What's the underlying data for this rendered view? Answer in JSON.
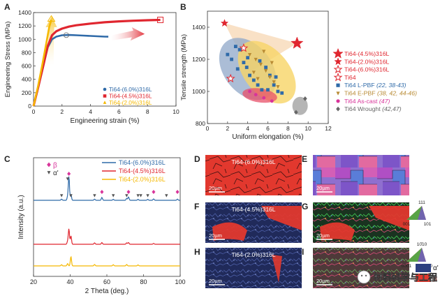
{
  "panels": {
    "A": {
      "letter": "A"
    },
    "B": {
      "letter": "B"
    },
    "C": {
      "letter": "C"
    },
    "D": {
      "letter": "D",
      "label": "Ti64-(6.0%)316L",
      "scale": "20µm"
    },
    "E": {
      "letter": "E",
      "scale": "20µm"
    },
    "F": {
      "letter": "F",
      "label": "Ti64-(4.5%)316L",
      "scale": "20µm"
    },
    "G": {
      "letter": "G",
      "scale": "20µm"
    },
    "H": {
      "letter": "H",
      "label": "Ti64-(2.0%)316L",
      "scale": "20µm"
    },
    "I": {
      "letter": "I",
      "scale": "20µm"
    }
  },
  "ipf_keys": [
    {
      "top": "111",
      "left": "001",
      "right": "101"
    },
    {
      "top": "10̄10",
      "left": "0001",
      "right": "2̄110"
    }
  ],
  "phase_legend": {
    "alpha": "α'",
    "beta": "β"
  },
  "watermark": "材料科学与工程",
  "colors": {
    "blue": "#2f6aa8",
    "red": "#e0262f",
    "yellow": "#f5b800",
    "gray": "#808080",
    "pink": "#d8349a"
  },
  "chart_data": [
    {
      "panel": "A",
      "type": "line",
      "xlabel": "Engineering strain (%)",
      "ylabel": "Engineering Stress (MPa)",
      "xlim": [
        0,
        10
      ],
      "ylim": [
        0,
        1400
      ],
      "xticks": [
        0,
        2,
        4,
        6,
        8,
        10
      ],
      "yticks": [
        0,
        200,
        400,
        600,
        800,
        1000,
        1200,
        1400
      ],
      "legend_position": "bottom-right",
      "series": [
        {
          "name": "Ti64-(6.0%)316L",
          "color": "#2f6aa8",
          "marker": "circle",
          "x": [
            0,
            0.35,
            0.7,
            1.0,
            1.3,
            1.6,
            2.0,
            2.5,
            3.0,
            3.5,
            4.0,
            4.5,
            5.0,
            5.25
          ],
          "y": [
            0,
            300,
            620,
            880,
            1000,
            1040,
            1060,
            1065,
            1060,
            1055,
            1050,
            1045,
            1040,
            1038
          ],
          "end": [
            5.25,
            1038
          ],
          "open_marker": [
            2.3,
            1062
          ]
        },
        {
          "name": "Ti64-(4.5%)316L",
          "color": "#e0262f",
          "marker": "square",
          "x": [
            0,
            0.35,
            0.7,
            1.0,
            1.3,
            1.6,
            2.0,
            2.5,
            3.0,
            4.0,
            5.0,
            6.0,
            7.0,
            8.0,
            8.9
          ],
          "y": [
            0,
            300,
            620,
            900,
            1060,
            1120,
            1160,
            1190,
            1210,
            1235,
            1255,
            1268,
            1278,
            1285,
            1290
          ],
          "end": [
            8.9,
            1290
          ],
          "open_marker": [
            8.9,
            1290
          ]
        },
        {
          "name": "Ti64-(2.0%)316L",
          "color": "#f5b800",
          "marker": "triangle",
          "x": [
            0,
            0.3,
            0.6,
            0.9,
            1.1,
            1.25
          ],
          "y": [
            0,
            280,
            600,
            950,
            1180,
            1290
          ],
          "end": [
            1.25,
            1290
          ],
          "open_marker": [
            1.25,
            1290
          ]
        }
      ]
    },
    {
      "panel": "B",
      "type": "scatter",
      "xlabel": "Uniform elongation (%)",
      "ylabel": "Tensile strength (MPa)",
      "xlim": [
        0,
        12
      ],
      "ylim": [
        800,
        1500
      ],
      "xticks": [
        0,
        2,
        4,
        6,
        8,
        10,
        12
      ],
      "yticks": [
        800,
        1000,
        1200,
        1400
      ],
      "legend_position": "right",
      "series": [
        {
          "name": "Ti64-(4.5%)316L",
          "color": "#e0262f",
          "marker": "star-filled-large",
          "points": [
            [
              8.9,
              1300
            ]
          ]
        },
        {
          "name": "Ti64-(2.0%)316L",
          "color": "#e0262f",
          "marker": "star-filled",
          "points": [
            [
              1.7,
              1425
            ]
          ]
        },
        {
          "name": "Ti64-(6.0%)316L",
          "color": "#e0262f",
          "marker": "star-open",
          "points": [
            [
              2.3,
              1080
            ]
          ]
        },
        {
          "name": "Ti64",
          "color": "#e0262f",
          "marker": "star-open",
          "points": [
            [
              3.6,
              1270
            ]
          ]
        },
        {
          "name": "Ti64 L-PBF",
          "ref": "(22, 38-43)",
          "color": "#2f6aa8",
          "marker": "square",
          "points": [
            [
              2.0,
              1230
            ],
            [
              2.4,
              1200
            ],
            [
              2.8,
              1280
            ],
            [
              3.2,
              1260
            ],
            [
              3.6,
              1180
            ],
            [
              3.9,
              1150
            ],
            [
              4.2,
              1100
            ],
            [
              4.6,
              1070
            ],
            [
              5.0,
              1040
            ],
            [
              5.4,
              1010
            ],
            [
              4.0,
              1210
            ],
            [
              3.0,
              1140
            ],
            [
              5.8,
              1150
            ],
            [
              6.2,
              1100
            ],
            [
              6.6,
              1040
            ],
            [
              7.0,
              1000
            ],
            [
              7.4,
              990
            ],
            [
              5.2,
              1190
            ],
            [
              6.0,
              1010
            ],
            [
              6.8,
              1090
            ]
          ]
        },
        {
          "name": "Ti64 E-PBF",
          "ref": "(38, 42, 44-46)",
          "color": "#b88a33",
          "marker": "triangle-down",
          "points": [
            [
              4.2,
              1230
            ],
            [
              4.8,
              1200
            ],
            [
              5.3,
              1170
            ],
            [
              5.8,
              1130
            ],
            [
              6.2,
              1090
            ],
            [
              6.6,
              1060
            ],
            [
              7.0,
              1030
            ],
            [
              5.0,
              1080
            ],
            [
              4.6,
              1120
            ],
            [
              5.6,
              1250
            ],
            [
              6.4,
              1180
            ]
          ]
        },
        {
          "name": "Ti64 As-cast",
          "ref": "(47)",
          "color": "#d8349a",
          "marker": "circle",
          "points": [
            [
              4.2,
              1000
            ],
            [
              5.6,
              960
            ],
            [
              6.4,
              940
            ],
            [
              4.8,
              980
            ]
          ]
        },
        {
          "name": "Ti64 Wrought",
          "ref": "(42,47)",
          "color": "#666666",
          "marker": "diamond",
          "points": [
            [
              8.8,
              870
            ],
            [
              9.7,
              955
            ]
          ]
        }
      ]
    },
    {
      "panel": "C",
      "type": "line",
      "xlabel": "2 Theta (deg.)",
      "ylabel": "Intensity (a.u.)",
      "xlim": [
        20,
        100
      ],
      "xticks": [
        20,
        40,
        60,
        80,
        100
      ],
      "legend_position": "top-right",
      "phase_markers": {
        "beta": "β",
        "alpha": "α'"
      },
      "beta_peaks": [
        39.3,
        57.3,
        71.8,
        85.5,
        98.5
      ],
      "alpha_peaks": [
        35.3,
        38.6,
        40.4,
        53.3,
        63.5,
        70.8,
        77.0,
        78.5,
        82.3,
        92.5
      ],
      "series": [
        {
          "name": "Ti64-(6.0%)316L",
          "color": "#2f6aa8",
          "peaks": [
            [
              35.3,
              0.05
            ],
            [
              38.6,
              0.15
            ],
            [
              39.3,
              1.0
            ],
            [
              40.4,
              0.25
            ],
            [
              53.3,
              0.05
            ],
            [
              57.3,
              0.12
            ],
            [
              63.5,
              0.04
            ],
            [
              70.8,
              0.08
            ],
            [
              71.8,
              0.14
            ],
            [
              77.0,
              0.04
            ],
            [
              82.3,
              0.04
            ],
            [
              85.5,
              0.06
            ],
            [
              98.5,
              0.05
            ]
          ]
        },
        {
          "name": "Ti64-(4.5%)316L",
          "color": "#e0262f",
          "peaks": [
            [
              38.6,
              0.1
            ],
            [
              39.3,
              0.55
            ],
            [
              40.4,
              0.3
            ],
            [
              53.3,
              0.05
            ],
            [
              57.3,
              0.06
            ],
            [
              70.8,
              0.05
            ],
            [
              71.8,
              0.06
            ],
            [
              85.5,
              0.03
            ]
          ]
        },
        {
          "name": "Ti64-(2.0%)316L",
          "color": "#f5b800",
          "peaks": [
            [
              35.3,
              0.06
            ],
            [
              38.6,
              0.12
            ],
            [
              40.4,
              0.48
            ],
            [
              53.3,
              0.07
            ],
            [
              63.5,
              0.06
            ],
            [
              70.8,
              0.07
            ],
            [
              77.0,
              0.05
            ]
          ]
        }
      ]
    }
  ]
}
